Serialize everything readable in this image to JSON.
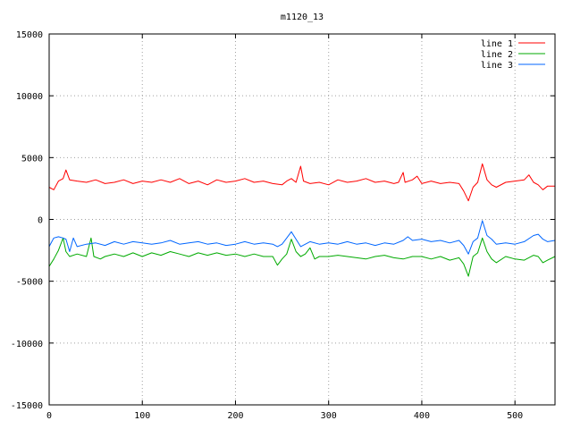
{
  "chart_data": {
    "type": "line",
    "title": "m1120_13",
    "xlabel": "",
    "ylabel": "",
    "xlim": [
      0,
      543
    ],
    "ylim": [
      -15000,
      15000
    ],
    "x_ticks": [
      0,
      100,
      200,
      300,
      400,
      500
    ],
    "y_ticks": [
      -15000,
      -10000,
      -5000,
      0,
      5000,
      10000,
      15000
    ],
    "grid": true,
    "legend_position": "top-right",
    "series": [
      {
        "name": "line 1",
        "color": "#ff0000",
        "points": [
          [
            0,
            2600
          ],
          [
            5,
            2400
          ],
          [
            10,
            3100
          ],
          [
            15,
            3300
          ],
          [
            18,
            4000
          ],
          [
            22,
            3200
          ],
          [
            30,
            3100
          ],
          [
            40,
            3000
          ],
          [
            50,
            3200
          ],
          [
            60,
            2900
          ],
          [
            70,
            3000
          ],
          [
            80,
            3200
          ],
          [
            90,
            2900
          ],
          [
            100,
            3100
          ],
          [
            110,
            3000
          ],
          [
            120,
            3200
          ],
          [
            130,
            3000
          ],
          [
            140,
            3300
          ],
          [
            150,
            2900
          ],
          [
            160,
            3100
          ],
          [
            170,
            2800
          ],
          [
            180,
            3200
          ],
          [
            190,
            3000
          ],
          [
            200,
            3100
          ],
          [
            210,
            3300
          ],
          [
            220,
            3000
          ],
          [
            230,
            3100
          ],
          [
            240,
            2900
          ],
          [
            250,
            2800
          ],
          [
            255,
            3100
          ],
          [
            260,
            3300
          ],
          [
            265,
            3000
          ],
          [
            270,
            4300
          ],
          [
            273,
            3100
          ],
          [
            280,
            2900
          ],
          [
            290,
            3000
          ],
          [
            300,
            2800
          ],
          [
            310,
            3200
          ],
          [
            320,
            3000
          ],
          [
            330,
            3100
          ],
          [
            340,
            3300
          ],
          [
            350,
            3000
          ],
          [
            360,
            3100
          ],
          [
            370,
            2900
          ],
          [
            375,
            3000
          ],
          [
            380,
            3800
          ],
          [
            382,
            3000
          ],
          [
            390,
            3200
          ],
          [
            395,
            3500
          ],
          [
            400,
            2900
          ],
          [
            410,
            3100
          ],
          [
            420,
            2900
          ],
          [
            430,
            3000
          ],
          [
            440,
            2900
          ],
          [
            445,
            2300
          ],
          [
            450,
            1500
          ],
          [
            455,
            2600
          ],
          [
            460,
            3000
          ],
          [
            465,
            4500
          ],
          [
            470,
            3200
          ],
          [
            475,
            2800
          ],
          [
            480,
            2600
          ],
          [
            490,
            3000
          ],
          [
            500,
            3100
          ],
          [
            510,
            3200
          ],
          [
            515,
            3600
          ],
          [
            520,
            3000
          ],
          [
            525,
            2800
          ],
          [
            530,
            2400
          ],
          [
            535,
            2700
          ],
          [
            543,
            2700
          ]
        ]
      },
      {
        "name": "line 2",
        "color": "#00aa00",
        "points": [
          [
            0,
            -3800
          ],
          [
            5,
            -3200
          ],
          [
            10,
            -2500
          ],
          [
            15,
            -1500
          ],
          [
            18,
            -2600
          ],
          [
            22,
            -3000
          ],
          [
            30,
            -2800
          ],
          [
            40,
            -3000
          ],
          [
            45,
            -1500
          ],
          [
            48,
            -3000
          ],
          [
            55,
            -3200
          ],
          [
            60,
            -3000
          ],
          [
            70,
            -2800
          ],
          [
            80,
            -3000
          ],
          [
            90,
            -2700
          ],
          [
            100,
            -3000
          ],
          [
            110,
            -2700
          ],
          [
            120,
            -2900
          ],
          [
            130,
            -2600
          ],
          [
            140,
            -2800
          ],
          [
            150,
            -3000
          ],
          [
            160,
            -2700
          ],
          [
            170,
            -2900
          ],
          [
            180,
            -2700
          ],
          [
            190,
            -2900
          ],
          [
            200,
            -2800
          ],
          [
            210,
            -3000
          ],
          [
            220,
            -2800
          ],
          [
            230,
            -3000
          ],
          [
            240,
            -3000
          ],
          [
            245,
            -3700
          ],
          [
            250,
            -3200
          ],
          [
            255,
            -2800
          ],
          [
            260,
            -1600
          ],
          [
            265,
            -2600
          ],
          [
            270,
            -3000
          ],
          [
            275,
            -2800
          ],
          [
            280,
            -2300
          ],
          [
            285,
            -3200
          ],
          [
            290,
            -3000
          ],
          [
            300,
            -3000
          ],
          [
            310,
            -2900
          ],
          [
            320,
            -3000
          ],
          [
            330,
            -3100
          ],
          [
            340,
            -3200
          ],
          [
            350,
            -3000
          ],
          [
            360,
            -2900
          ],
          [
            370,
            -3100
          ],
          [
            380,
            -3200
          ],
          [
            390,
            -3000
          ],
          [
            400,
            -3000
          ],
          [
            410,
            -3200
          ],
          [
            420,
            -3000
          ],
          [
            430,
            -3300
          ],
          [
            440,
            -3100
          ],
          [
            445,
            -3600
          ],
          [
            450,
            -4600
          ],
          [
            455,
            -3000
          ],
          [
            460,
            -2700
          ],
          [
            465,
            -1500
          ],
          [
            470,
            -2600
          ],
          [
            475,
            -3200
          ],
          [
            480,
            -3500
          ],
          [
            490,
            -3000
          ],
          [
            500,
            -3200
          ],
          [
            510,
            -3300
          ],
          [
            520,
            -2900
          ],
          [
            525,
            -3000
          ],
          [
            530,
            -3500
          ],
          [
            535,
            -3300
          ],
          [
            543,
            -3000
          ]
        ]
      },
      {
        "name": "line 3",
        "color": "#0066ff",
        "points": [
          [
            0,
            -2200
          ],
          [
            5,
            -1500
          ],
          [
            10,
            -1400
          ],
          [
            15,
            -1500
          ],
          [
            18,
            -1600
          ],
          [
            22,
            -2600
          ],
          [
            26,
            -1500
          ],
          [
            30,
            -2200
          ],
          [
            40,
            -2000
          ],
          [
            50,
            -1900
          ],
          [
            60,
            -2100
          ],
          [
            70,
            -1800
          ],
          [
            80,
            -2000
          ],
          [
            90,
            -1800
          ],
          [
            100,
            -1900
          ],
          [
            110,
            -2000
          ],
          [
            120,
            -1900
          ],
          [
            130,
            -1700
          ],
          [
            140,
            -2000
          ],
          [
            150,
            -1900
          ],
          [
            160,
            -1800
          ],
          [
            170,
            -2000
          ],
          [
            180,
            -1900
          ],
          [
            190,
            -2100
          ],
          [
            200,
            -2000
          ],
          [
            210,
            -1800
          ],
          [
            220,
            -2000
          ],
          [
            230,
            -1900
          ],
          [
            240,
            -2000
          ],
          [
            245,
            -2200
          ],
          [
            250,
            -2000
          ],
          [
            255,
            -1500
          ],
          [
            260,
            -1000
          ],
          [
            265,
            -1600
          ],
          [
            270,
            -2200
          ],
          [
            280,
            -1800
          ],
          [
            290,
            -2000
          ],
          [
            300,
            -1900
          ],
          [
            310,
            -2000
          ],
          [
            320,
            -1800
          ],
          [
            330,
            -2000
          ],
          [
            340,
            -1900
          ],
          [
            350,
            -2100
          ],
          [
            360,
            -1900
          ],
          [
            370,
            -2000
          ],
          [
            380,
            -1700
          ],
          [
            385,
            -1400
          ],
          [
            390,
            -1700
          ],
          [
            400,
            -1600
          ],
          [
            410,
            -1800
          ],
          [
            420,
            -1700
          ],
          [
            430,
            -1900
          ],
          [
            440,
            -1700
          ],
          [
            445,
            -2100
          ],
          [
            450,
            -2800
          ],
          [
            455,
            -1800
          ],
          [
            460,
            -1500
          ],
          [
            465,
            -100
          ],
          [
            470,
            -1300
          ],
          [
            475,
            -1600
          ],
          [
            480,
            -2000
          ],
          [
            490,
            -1900
          ],
          [
            500,
            -2000
          ],
          [
            510,
            -1800
          ],
          [
            520,
            -1300
          ],
          [
            525,
            -1200
          ],
          [
            530,
            -1600
          ],
          [
            535,
            -1800
          ],
          [
            543,
            -1700
          ]
        ]
      }
    ]
  }
}
